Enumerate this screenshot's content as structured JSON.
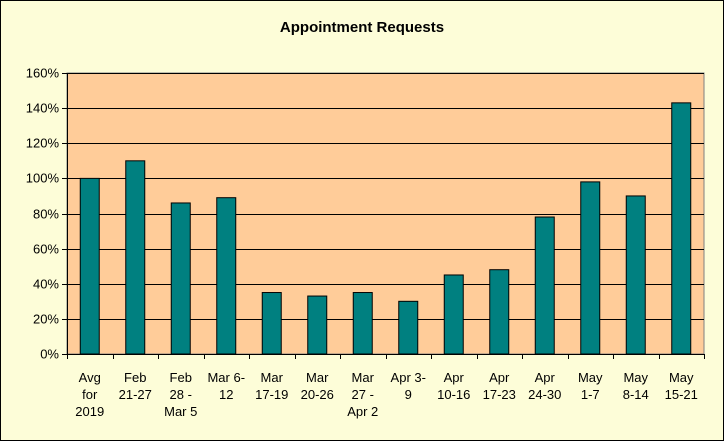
{
  "chart_data": {
    "type": "bar",
    "title": "Appointment Requests",
    "xlabel": "",
    "ylabel": "",
    "ylim": [
      0,
      160
    ],
    "y_tick_step": 20,
    "y_tick_format": "percent",
    "grid": true,
    "legend": "none",
    "categories": [
      [
        "Avg",
        "for",
        "2019"
      ],
      [
        "Feb",
        "21-27"
      ],
      [
        "Feb",
        "28 -",
        "Mar 5"
      ],
      [
        "Mar 6-",
        "12"
      ],
      [
        "Mar",
        "17-19"
      ],
      [
        "Mar",
        "20-26"
      ],
      [
        "Mar",
        "27 -",
        "Apr 2"
      ],
      [
        "Apr 3-",
        "9"
      ],
      [
        "Apr",
        "10-16"
      ],
      [
        "Apr",
        "17-23"
      ],
      [
        "Apr",
        "24-30"
      ],
      [
        "May",
        "1-7"
      ],
      [
        "May",
        "8-14"
      ],
      [
        "May",
        "15-21"
      ]
    ],
    "values": [
      100,
      110,
      86,
      89,
      35,
      33,
      35,
      30,
      45,
      48,
      78,
      98,
      90,
      143
    ],
    "colors": {
      "bar": "#008080",
      "plot_background": "#ffcc99",
      "chart_background": "#fdfdd8",
      "grid": "#000000"
    }
  }
}
